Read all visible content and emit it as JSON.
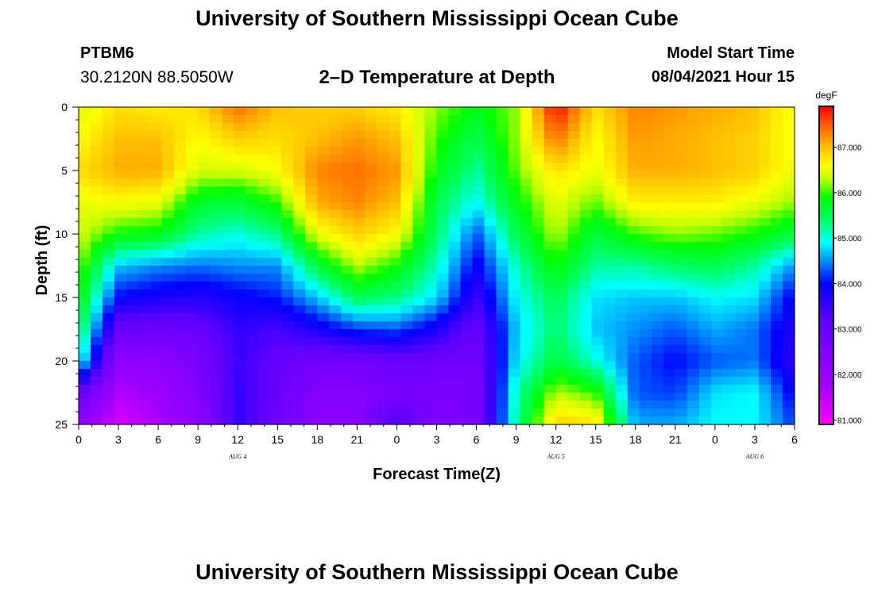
{
  "header": {
    "title": "University of Southern Mississippi Ocean Cube",
    "station_id": "PTBM6",
    "coordinates": "30.2120N  88.5050W",
    "chart_title": "2–D Temperature at Depth",
    "model_start_label": "Model Start Time",
    "model_start_value": "08/04/2021 Hour 15"
  },
  "footer": {
    "title": "University of Southern Mississippi Ocean Cube"
  },
  "chart_data": {
    "type": "heatmap",
    "title": "2–D Temperature at Depth",
    "xlabel": "Forecast Time(Z)",
    "ylabel": "Depth (ft)",
    "x_range_hours": [
      0,
      54
    ],
    "y_range_ft": [
      0,
      25
    ],
    "y_inverted": true,
    "x_tick_labels": [
      "0",
      "3",
      "6",
      "9",
      "12",
      "15",
      "18",
      "21",
      "0",
      "3",
      "6",
      "9",
      "12",
      "15",
      "18",
      "21",
      "0",
      "3",
      "6"
    ],
    "y_tick_labels": [
      "0",
      "5",
      "10",
      "15",
      "20",
      "25"
    ],
    "y_tick_values": [
      0,
      5,
      10,
      15,
      20,
      25
    ],
    "date_labels": [
      {
        "label": "AUG 4",
        "hour": 12
      },
      {
        "label": "AUG 5",
        "hour": 36
      },
      {
        "label": "AUG 6",
        "hour": 51
      }
    ],
    "colorbar": {
      "unit": "degF",
      "min": 80.9,
      "max": 87.9,
      "tick_values": [
        81,
        82,
        83,
        84,
        85,
        86,
        87
      ],
      "tick_labels": [
        "81.000",
        "82.000",
        "83.000",
        "84.000",
        "85.000",
        "86.000",
        "87.000"
      ],
      "color_stops": [
        {
          "value": 80.9,
          "color": "#ff00ff"
        },
        {
          "value": 81.8,
          "color": "#a000ff"
        },
        {
          "value": 83.2,
          "color": "#6000ff"
        },
        {
          "value": 84.0,
          "color": "#0000ff"
        },
        {
          "value": 84.5,
          "color": "#0090ff"
        },
        {
          "value": 84.9,
          "color": "#00ffff"
        },
        {
          "value": 85.4,
          "color": "#00ff60"
        },
        {
          "value": 85.9,
          "color": "#00ff00"
        },
        {
          "value": 86.3,
          "color": "#c0ff00"
        },
        {
          "value": 86.6,
          "color": "#ffff00"
        },
        {
          "value": 87.0,
          "color": "#ffc000"
        },
        {
          "value": 87.4,
          "color": "#ff7000"
        },
        {
          "value": 87.9,
          "color": "#ff0000"
        }
      ]
    },
    "grid": {
      "times": [
        0,
        3,
        6,
        9,
        12,
        15,
        18,
        21,
        24,
        27,
        30,
        33,
        36,
        39,
        42,
        45,
        48,
        51,
        54
      ],
      "depths": [
        0,
        2.5,
        5,
        7.5,
        10,
        12.5,
        15,
        17.5,
        20,
        22.5,
        25
      ],
      "values_degF": [
        [
          86.4,
          86.6,
          86.8,
          86.5,
          86.4,
          86.2,
          85.9,
          85.6,
          85.1,
          83.2,
          82.1
        ],
        [
          86.8,
          87.0,
          87.1,
          86.6,
          85.9,
          84.7,
          84.0,
          83.0,
          82.2,
          81.6,
          81.3
        ],
        [
          86.7,
          87.0,
          87.1,
          86.5,
          85.8,
          84.5,
          83.8,
          82.9,
          82.2,
          81.9,
          81.7
        ],
        [
          86.8,
          86.6,
          86.4,
          85.7,
          85.2,
          84.4,
          83.7,
          83.0,
          82.6,
          82.4,
          82.2
        ],
        [
          87.4,
          86.9,
          86.4,
          85.6,
          85.0,
          84.5,
          83.9,
          83.6,
          83.5,
          83.6,
          83.6
        ],
        [
          87.0,
          86.8,
          86.6,
          86.0,
          85.3,
          84.5,
          84.1,
          83.4,
          83.1,
          83.0,
          82.9
        ],
        [
          86.9,
          87.0,
          87.3,
          87.1,
          86.5,
          85.6,
          84.7,
          83.8,
          82.8,
          82.4,
          82.3
        ],
        [
          86.9,
          87.2,
          87.4,
          87.3,
          86.9,
          86.3,
          85.5,
          84.2,
          82.8,
          82.4,
          82.3
        ],
        [
          86.7,
          87.0,
          87.2,
          87.0,
          86.6,
          85.9,
          85.3,
          84.3,
          83.0,
          82.6,
          83.4
        ],
        [
          86.2,
          86.0,
          85.8,
          85.5,
          85.4,
          85.1,
          84.8,
          83.8,
          82.9,
          82.6,
          82.5
        ],
        [
          85.8,
          85.5,
          85.2,
          84.9,
          84.3,
          83.9,
          83.5,
          83.0,
          82.8,
          82.6,
          82.6
        ],
        [
          86.2,
          86.2,
          86.1,
          85.8,
          85.5,
          85.1,
          84.9,
          84.7,
          84.8,
          85.1,
          85.2
        ],
        [
          87.9,
          87.4,
          86.8,
          86.5,
          86.3,
          85.9,
          85.5,
          85.4,
          85.6,
          86.3,
          86.9
        ],
        [
          86.8,
          86.6,
          86.5,
          86.1,
          85.6,
          85.2,
          84.8,
          84.7,
          85.0,
          86.0,
          86.8
        ],
        [
          87.3,
          87.2,
          87.1,
          86.7,
          86.0,
          85.2,
          84.7,
          84.5,
          84.3,
          84.3,
          84.6
        ],
        [
          87.2,
          87.1,
          87.1,
          86.7,
          86.2,
          85.4,
          84.7,
          84.3,
          84.0,
          84.2,
          84.6
        ],
        [
          87.1,
          87.0,
          87.0,
          86.7,
          86.1,
          85.5,
          84.9,
          84.6,
          84.3,
          84.8,
          84.9
        ],
        [
          87.0,
          86.9,
          86.9,
          86.5,
          85.9,
          85.2,
          84.8,
          84.4,
          84.4,
          84.9,
          84.9
        ],
        [
          86.5,
          86.5,
          86.5,
          86.2,
          85.6,
          84.5,
          83.9,
          83.7,
          83.6,
          83.9,
          84.2
        ]
      ]
    }
  }
}
